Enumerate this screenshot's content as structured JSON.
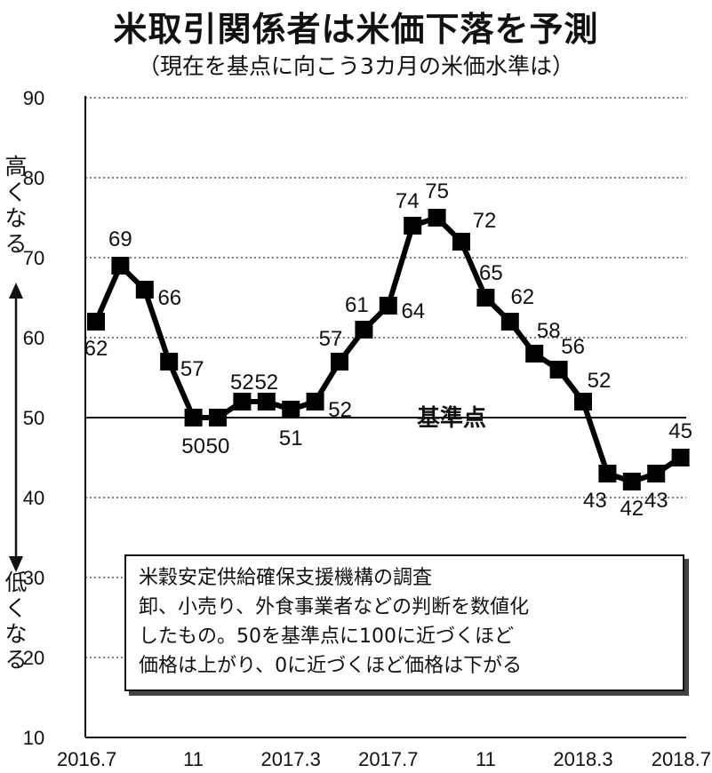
{
  "title": "米取引関係者は米価下落を予測",
  "subtitle": "（現在を基点に向こう3カ月の米価水準は）",
  "note_lines": [
    "米穀安定供給確保支援機構の調査",
    "卸、小売り、外食事業者などの判断を数値化",
    "したもの。50を基準点に100に近づくほど",
    "価格は上がり、0に近づくほど価格は下がる"
  ],
  "chart_data": {
    "type": "line",
    "title": "米取引関係者は米価下落を予測",
    "subtitle": "（現在を基点に向こう3カ月の米価水準は）",
    "x_tick_labels": [
      "2016.7",
      "11",
      "2017.3",
      "2017.7",
      "11",
      "2018.3",
      "2018.7"
    ],
    "x": [
      "2016.7",
      "2016.8",
      "2016.9",
      "2016.10",
      "2016.11",
      "2016.12",
      "2017.1",
      "2017.2",
      "2017.3",
      "2017.4",
      "2017.5",
      "2017.6",
      "2017.7",
      "2017.8",
      "2017.9",
      "2017.10",
      "2017.11",
      "2017.12",
      "2018.1",
      "2018.2",
      "2018.3",
      "2018.4",
      "2018.5",
      "2018.6",
      "2018.7"
    ],
    "values": [
      62,
      69,
      66,
      57,
      50,
      50,
      52,
      52,
      51,
      52,
      57,
      61,
      64,
      74,
      75,
      72,
      65,
      62,
      58,
      56,
      52,
      43,
      42,
      43,
      45
    ],
    "ylim": [
      10,
      90
    ],
    "yticks": [
      10,
      20,
      30,
      40,
      50,
      60,
      70,
      80,
      90
    ],
    "reference_line": {
      "value": 50,
      "label": "基準点"
    },
    "y_annotation_top": "高くなる",
    "y_annotation_bottom": "低くなる",
    "grid": "dotted horizontal",
    "line_color": "#000000",
    "marker": "square"
  }
}
